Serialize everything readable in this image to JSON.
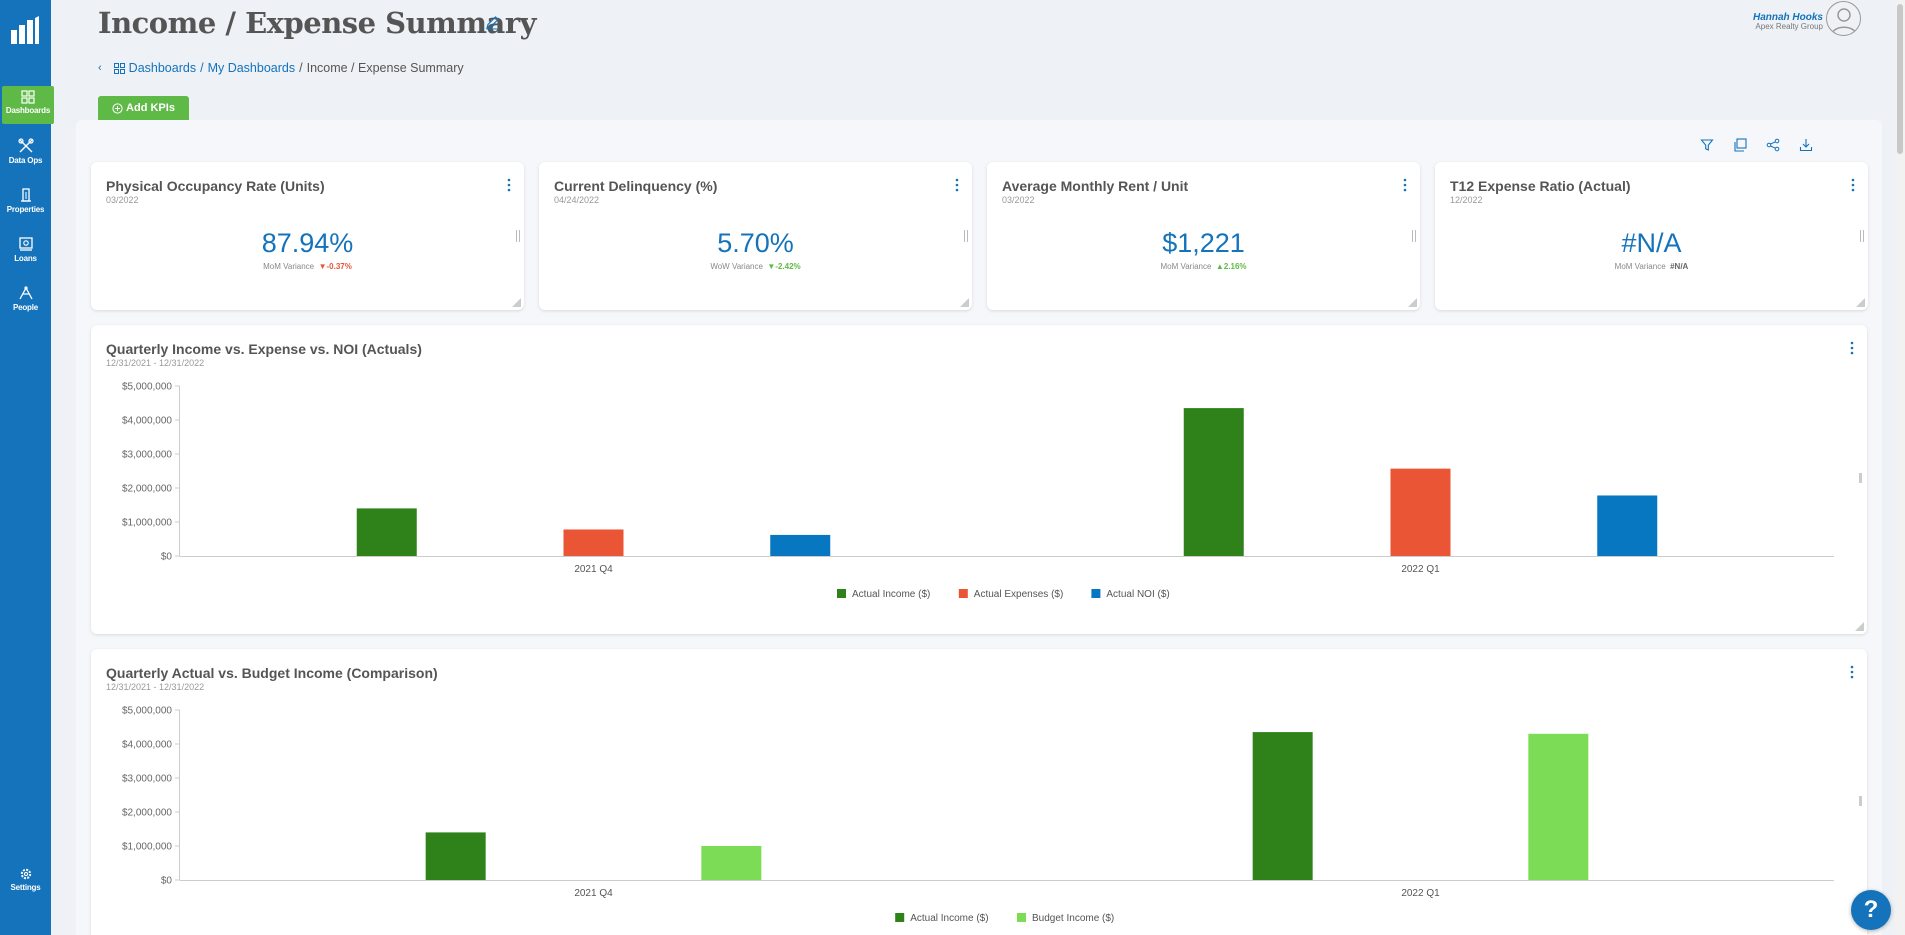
{
  "header": {
    "title": "Income / Expense Summary",
    "user_name": "Hannah Hooks",
    "user_org": "Apex Realty Group"
  },
  "breadcrumb": {
    "dashboards": "Dashboards",
    "sep1": "/",
    "my_dashboards": "My Dashboards",
    "sep2": "/",
    "current": "Income / Expense Summary"
  },
  "sidebar": {
    "items": [
      {
        "label": "Dashboards",
        "icon": "dashboard-grid-icon"
      },
      {
        "label": "Data Ops",
        "icon": "tools-icon"
      },
      {
        "label": "Properties",
        "icon": "building-icon"
      },
      {
        "label": "Loans",
        "icon": "loans-icon"
      },
      {
        "label": "People",
        "icon": "people-icon"
      }
    ],
    "settings_label": "Settings"
  },
  "toolbar": {
    "add_kpis": "Add KPIs"
  },
  "kpis": [
    {
      "title": "Physical Occupancy Rate (Units)",
      "date": "03/2022",
      "value": "87.94%",
      "variance_label": "MoM Variance",
      "variance": "▼-0.37%",
      "direction": "down"
    },
    {
      "title": "Current Delinquency (%)",
      "date": "04/24/2022",
      "value": "5.70%",
      "variance_label": "WoW Variance",
      "variance": "▼-2.42%",
      "direction": "down-good"
    },
    {
      "title": "Average Monthly Rent / Unit",
      "date": "03/2022",
      "value": "$1,221",
      "variance_label": "MoM Variance",
      "variance": "▲2.16%",
      "direction": "up"
    },
    {
      "title": "T12 Expense Ratio (Actual)",
      "date": "12/2022",
      "value": "#N/A",
      "variance_label": "MoM Variance",
      "variance": "#N/A",
      "direction": "na"
    }
  ],
  "colors": {
    "brand_blue": "#1473bb",
    "green": "#5fb946",
    "income": "#2e8219",
    "expenses": "#ea5535",
    "noi": "#0877c2",
    "budget": "#7ddc55"
  },
  "help_label": "?",
  "chart_data": [
    {
      "type": "bar",
      "title": "Quarterly Income vs. Expense vs. NOI (Actuals)",
      "subtitle": "12/31/2021 - 12/31/2022",
      "categories": [
        "2021 Q4",
        "2022 Q1"
      ],
      "series": [
        {
          "name": "Actual Income ($)",
          "color": "#2e8219",
          "values": [
            1400000,
            4350000
          ]
        },
        {
          "name": "Actual Expenses ($)",
          "color": "#ea5535",
          "values": [
            780000,
            2570000
          ]
        },
        {
          "name": "Actual NOI ($)",
          "color": "#0877c2",
          "values": [
            620000,
            1780000
          ]
        }
      ],
      "ylim": [
        0,
        5000000
      ],
      "yticks": [
        "$0",
        "$1,000,000",
        "$2,000,000",
        "$3,000,000",
        "$4,000,000",
        "$5,000,000"
      ],
      "legend": "bottom"
    },
    {
      "type": "bar",
      "title": "Quarterly Actual vs. Budget Income (Comparison)",
      "subtitle": "12/31/2021 - 12/31/2022",
      "categories": [
        "2021 Q4",
        "2022 Q1"
      ],
      "series": [
        {
          "name": "Actual Income ($)",
          "color": "#2e8219",
          "values": [
            1400000,
            4350000
          ]
        },
        {
          "name": "Budget Income ($)",
          "color": "#7ddc55",
          "values": [
            1000000,
            4300000
          ]
        }
      ],
      "ylim": [
        0,
        5000000
      ],
      "yticks": [
        "$0",
        "$1,000,000",
        "$2,000,000",
        "$3,000,000",
        "$4,000,000",
        "$5,000,000"
      ],
      "legend": "bottom"
    }
  ]
}
